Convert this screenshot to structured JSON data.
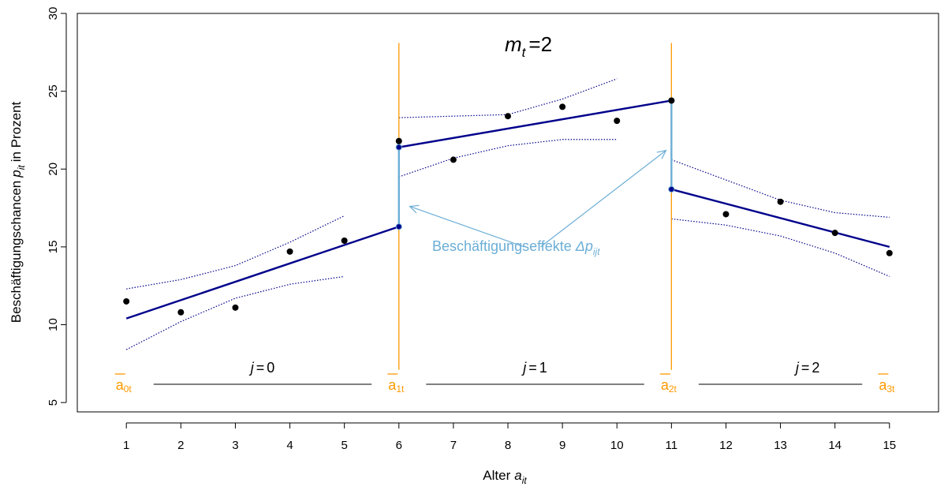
{
  "chart_data": {
    "type": "scatter",
    "title": "",
    "xlabel": "Alter",
    "xlabel_sub": "it",
    "ylabel": "Beschäftigungschancen",
    "ylabel_sym": "p",
    "ylabel_sub": "it",
    "ylabel_suffix": "in Prozent",
    "xlim": [
      0.1,
      15.9
    ],
    "ylim": [
      4.4,
      30
    ],
    "xticks": [
      1,
      2,
      3,
      4,
      5,
      6,
      7,
      8,
      9,
      10,
      11,
      12,
      13,
      14,
      15
    ],
    "yticks": [
      5,
      10,
      15,
      20,
      25,
      30
    ],
    "grid": false,
    "legend": "none",
    "colors": {
      "points": "#000000",
      "fit": "#00008b",
      "ci": "#00008b",
      "breaks": "#ff9900",
      "effect": "#6baed6"
    },
    "points": [
      {
        "x": 1,
        "y": 11.5
      },
      {
        "x": 2,
        "y": 10.8
      },
      {
        "x": 3,
        "y": 11.1
      },
      {
        "x": 4,
        "y": 14.7
      },
      {
        "x": 5,
        "y": 15.4
      },
      {
        "x": 6,
        "y": 21.8
      },
      {
        "x": 7,
        "y": 20.6
      },
      {
        "x": 8,
        "y": 23.4
      },
      {
        "x": 9,
        "y": 24.0
      },
      {
        "x": 10,
        "y": 23.1
      },
      {
        "x": 11,
        "y": 24.4
      },
      {
        "x": 12,
        "y": 17.1
      },
      {
        "x": 13,
        "y": 17.9
      },
      {
        "x": 14,
        "y": 15.9
      },
      {
        "x": 15,
        "y": 14.6
      }
    ],
    "segments": [
      {
        "name": "j=0",
        "x0": 1,
        "y0": 10.4,
        "x1": 6,
        "y1": 16.3
      },
      {
        "name": "j=1",
        "x0": 6,
        "y0": 21.4,
        "x1": 11,
        "y1": 24.4
      },
      {
        "name": "j=2",
        "x0": 11,
        "y0": 18.7,
        "x1": 15,
        "y1": 15.0
      }
    ],
    "ci_lines": [
      {
        "x": [
          1,
          2,
          3,
          4,
          5
        ],
        "y": [
          12.3,
          12.9,
          13.8,
          15.3,
          17.0
        ]
      },
      {
        "x": [
          1,
          2,
          3,
          4,
          5
        ],
        "y": [
          8.4,
          10.2,
          11.7,
          12.6,
          13.1
        ]
      },
      {
        "x": [
          6,
          7,
          8,
          9,
          10
        ],
        "y": [
          23.3,
          23.4,
          23.5,
          24.5,
          25.8
        ]
      },
      {
        "x": [
          6,
          7,
          8,
          9,
          10
        ],
        "y": [
          19.5,
          20.7,
          21.5,
          21.9,
          21.9
        ]
      },
      {
        "x": [
          11,
          12,
          13,
          14,
          15
        ],
        "y": [
          20.6,
          19.3,
          18.0,
          17.2,
          16.9
        ]
      },
      {
        "x": [
          11,
          12,
          13,
          14,
          15
        ],
        "y": [
          16.8,
          16.4,
          15.7,
          14.6,
          13.1
        ]
      }
    ],
    "breaks": [
      {
        "x": 6,
        "y_top": 28.1,
        "y_bottom": 7.1
      },
      {
        "x": 11,
        "y_top": 28.1,
        "y_bottom": 7.1
      }
    ],
    "effects": [
      {
        "x": 6,
        "y_from": 16.3,
        "y_to": 21.4
      },
      {
        "x": 11,
        "y_from": 24.4,
        "y_to": 18.7
      }
    ],
    "endpoint_labels": [
      {
        "x": 0.95,
        "sub": "0t"
      },
      {
        "x": 5.95,
        "sub": "1t"
      },
      {
        "x": 10.95,
        "sub": "2t"
      },
      {
        "x": 14.95,
        "sub": "3t"
      }
    ],
    "endpoint_base": "a",
    "interval_labels": [
      {
        "x_center": 3.5,
        "x_line": [
          1.5,
          5.5
        ],
        "j": "j",
        "val": "0"
      },
      {
        "x_center": 8.5,
        "x_line": [
          6.5,
          10.5
        ],
        "j": "j",
        "val": "1"
      },
      {
        "x_center": 13.5,
        "x_line": [
          11.5,
          14.5
        ],
        "j": "j",
        "val": "2"
      }
    ],
    "annotation": {
      "text": "Beschäftigungseffekte",
      "symbol": "Δp",
      "sub": "ijt",
      "arrows": [
        {
          "from_x": 8.3,
          "from_y": 15.0,
          "to_x": 6.2,
          "to_y": 17.6
        },
        {
          "from_x": 8.6,
          "from_y": 15.0,
          "to_x": 10.9,
          "to_y": 21.2
        }
      ]
    },
    "top_label": {
      "sym": "m",
      "sub": "t",
      "eq": "=",
      "val": "2"
    }
  }
}
